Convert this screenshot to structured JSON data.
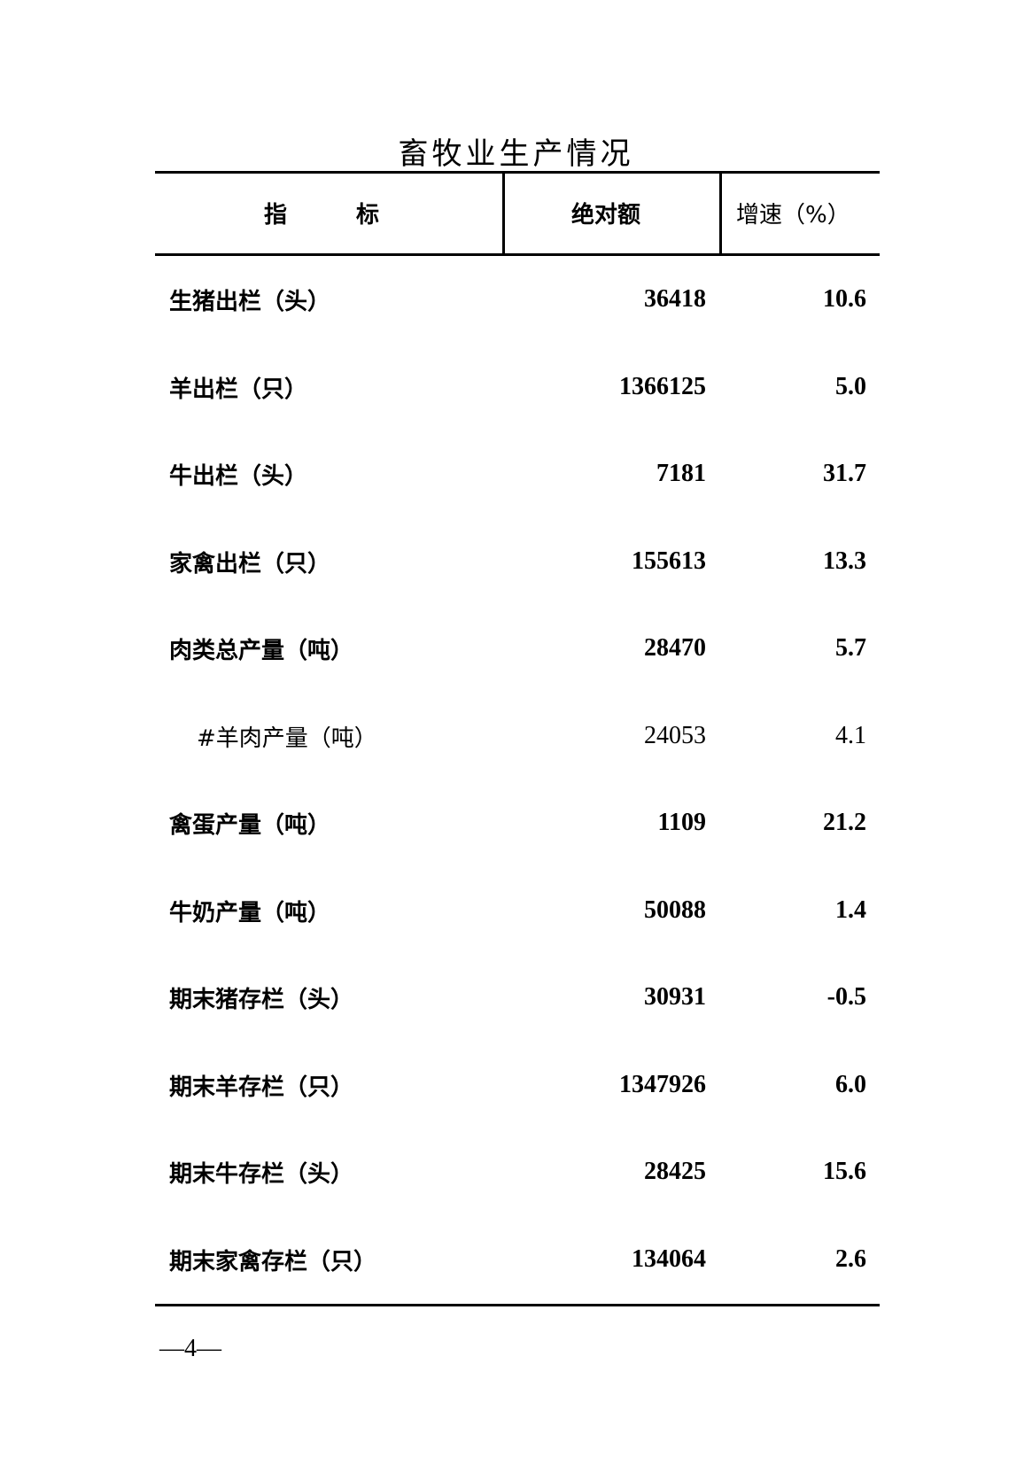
{
  "title": "畜牧业生产情况",
  "headers": {
    "indicator": "指　　　标",
    "absolute": "绝对额",
    "growth": "增速（%）"
  },
  "rows": [
    {
      "label": "生猪出栏（头）",
      "value": "36418",
      "growth": "10.6"
    },
    {
      "label": "羊出栏（只）",
      "value": "1366125",
      "growth": "5.0"
    },
    {
      "label": "牛出栏（头）",
      "value": "7181",
      "growth": "31.7"
    },
    {
      "label": "家禽出栏（只）",
      "value": "155613",
      "growth": "13.3"
    },
    {
      "label": "肉类总产量（吨）",
      "value": "28470",
      "growth": "5.7"
    },
    {
      "label": "#羊肉产量（吨）",
      "value": "24053",
      "growth": "4.1"
    },
    {
      "label": "禽蛋产量（吨）",
      "value": "1109",
      "growth": "21.2"
    },
    {
      "label": "牛奶产量（吨）",
      "value": "50088",
      "growth": "1.4"
    },
    {
      "label": "期末猪存栏（头）",
      "value": "30931",
      "growth": "-0.5"
    },
    {
      "label": "期末羊存栏（只）",
      "value": "1347926",
      "growth": "6.0"
    },
    {
      "label": "期末牛存栏（头）",
      "value": "28425",
      "growth": "15.6"
    },
    {
      "label": "期末家禽存栏（只）",
      "value": "134064",
      "growth": "2.6"
    }
  ],
  "page_number": "—4—"
}
